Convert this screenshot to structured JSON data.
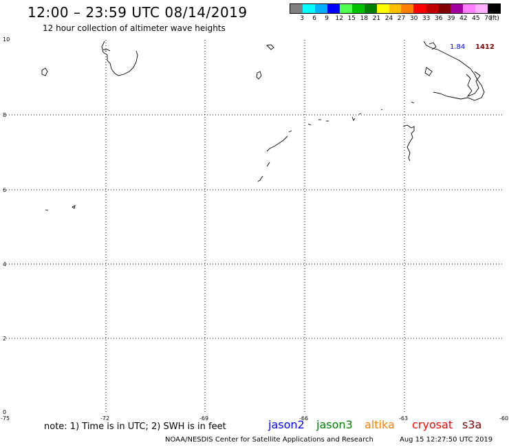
{
  "header": {
    "title": "12:00 – 23:59 UTC 08/14/2019",
    "subtitle": "12 hour collection of altimeter wave heights"
  },
  "legend": {
    "colors": [
      "#808080",
      "#00ffff",
      "#00b0ff",
      "#0000ff",
      "#50ff50",
      "#00c000",
      "#008000",
      "#ffff00",
      "#ffc000",
      "#ff8000",
      "#ff0000",
      "#c00000",
      "#800000",
      "#a000a0",
      "#ff80ff",
      "#ffb0ff",
      "#000000"
    ],
    "labels": [
      "3",
      "6",
      "9",
      "12",
      "15",
      "18",
      "21",
      "24",
      "27",
      "30",
      "33",
      "36",
      "39",
      "42",
      "45",
      "70",
      "(ft)"
    ]
  },
  "map": {
    "lat_ticks": [
      "10",
      "8",
      "6",
      "4",
      "2",
      "0"
    ],
    "lon_ticks": [
      "-75",
      "-72",
      "-69",
      "-66",
      "-63",
      "-60"
    ],
    "point_labels": [
      {
        "text": "1.84",
        "color": "#0000ff"
      },
      {
        "text": "1412",
        "color": "#800000"
      }
    ]
  },
  "footer": {
    "note": "note:  1) Time is in UTC;  2) SWH is in feet",
    "satellites": [
      {
        "name": "jason2",
        "color": "#0000ff"
      },
      {
        "name": "jason3",
        "color": "#008000"
      },
      {
        "name": "altika",
        "color": "#ff8000"
      },
      {
        "name": "cryosat",
        "color": "#ff0000"
      },
      {
        "name": "s3a",
        "color": "#800000"
      }
    ],
    "credit": "NOAA/NESDIS Center for Satellite Applications and Research",
    "timestamp": "Aug 15 12:27:50 UTC 2019"
  }
}
